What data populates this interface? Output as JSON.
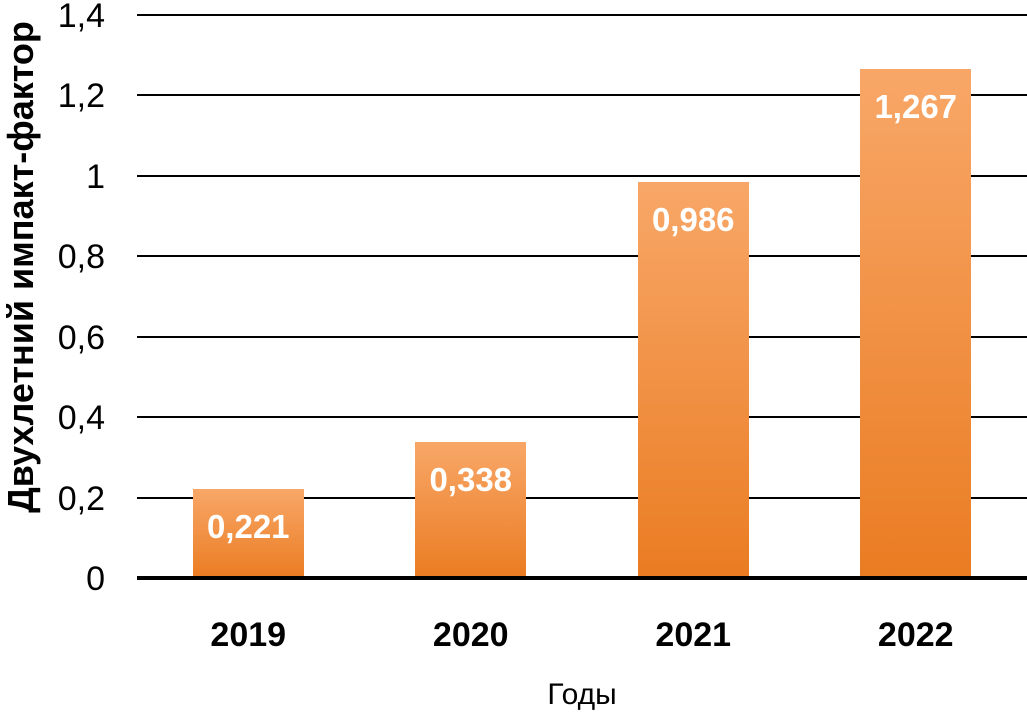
{
  "chart": {
    "y_axis_title": "Двухлетний импакт-фактор",
    "x_axis_title": "Годы"
  },
  "chart_data": {
    "type": "bar",
    "categories": [
      "2019",
      "2020",
      "2021",
      "2022"
    ],
    "values": [
      0.221,
      0.338,
      0.986,
      1.267
    ],
    "value_labels": [
      "0,221",
      "0,338",
      "0,986",
      "1,267"
    ],
    "title": "",
    "xlabel": "Годы",
    "ylabel": "Двухлетний импакт-фактор",
    "ylim": [
      0,
      1.4
    ],
    "ytick_values": [
      0,
      0.2,
      0.4,
      0.6,
      0.8,
      1,
      1.2,
      1.4
    ],
    "ytick_labels": [
      "0",
      "0,2",
      "0,4",
      "0,6",
      "0,8",
      "1",
      "1,2",
      "1,4"
    ],
    "grid": true,
    "legend": false,
    "decimal_separator": ",",
    "colors": {
      "bar_gradient_top": "#F8A768",
      "bar_gradient_bottom": "#EA7C22",
      "bar_value_label": "#FFFFFF",
      "gridline": "#000000",
      "axis_line": "#000000",
      "text": "#000000",
      "background": "#FFFFFF"
    }
  }
}
